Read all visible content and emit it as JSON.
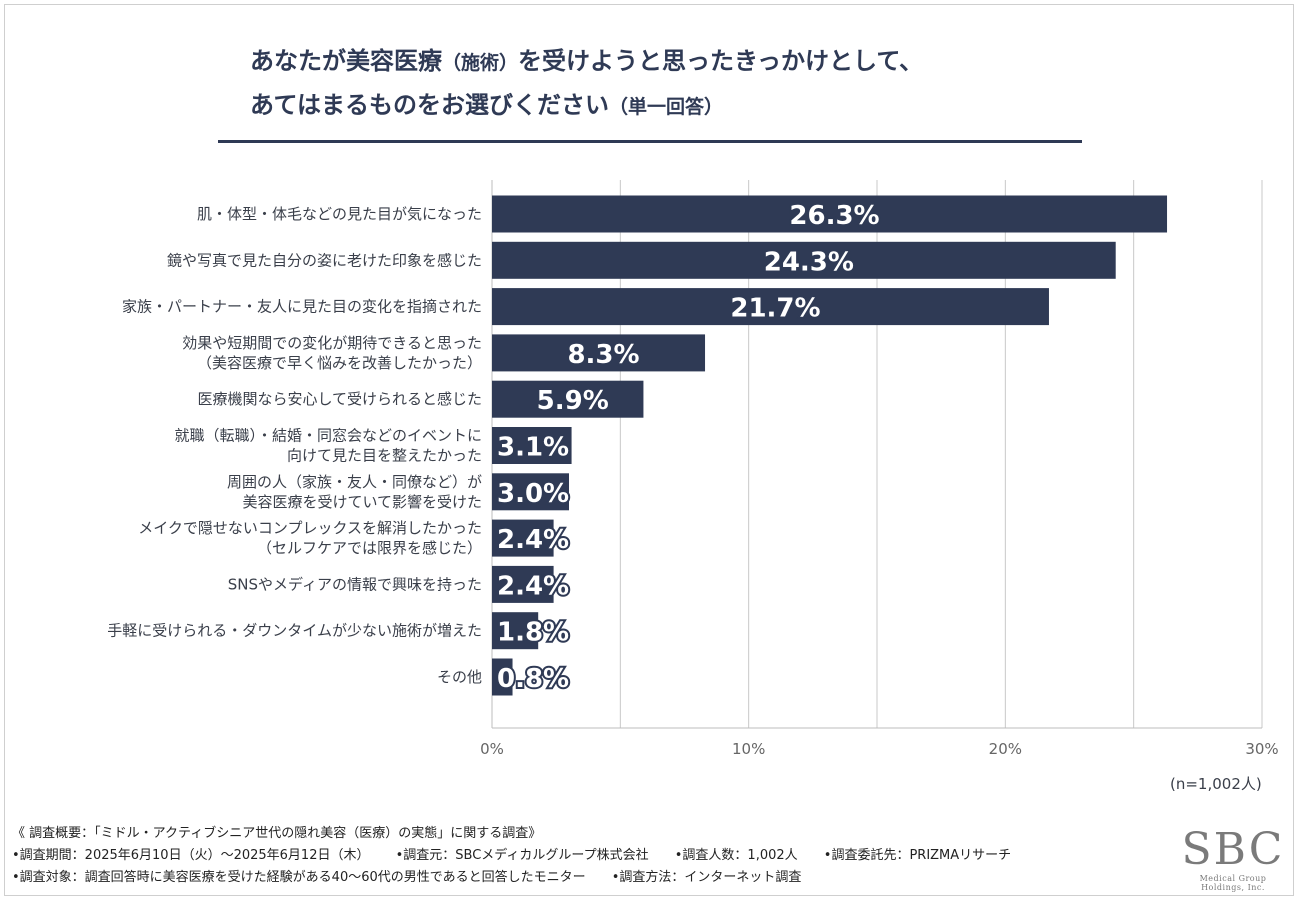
{
  "title": {
    "line1_main": "あなたが美容医療",
    "line1_paren": "（施術）",
    "line1_rest": "を受けようと思ったきっかけとして、",
    "line2_main": "あてはまるものをお選びください",
    "line2_paren": "（単一回答）"
  },
  "chart_data": {
    "type": "bar",
    "orientation": "horizontal",
    "categories": [
      [
        "肌・体型・体毛などの見た目が気になった"
      ],
      [
        "鏡や写真で見た自分の姿に老けた印象を感じた"
      ],
      [
        "家族・パートナー・友人に見た目の変化を指摘された"
      ],
      [
        "効果や短期間での変化が期待できると思った",
        "（美容医療で早く悩みを改善したかった）"
      ],
      [
        "医療機関なら安心して受けられると感じた"
      ],
      [
        "就職（転職）・結婚・同窓会などのイベントに",
        "向けて見た目を整えたかった"
      ],
      [
        "周囲の人（家族・友人・同僚など）が",
        "美容医療を受けていて影響を受けた"
      ],
      [
        "メイクで隠せないコンプレックスを解消したかった",
        "（セルフケアでは限界を感じた）"
      ],
      [
        "SNSやメディアの情報で興味を持った"
      ],
      [
        "手軽に受けられる・ダウンタイムが少ない施術が増えた"
      ],
      [
        "その他"
      ]
    ],
    "values": [
      26.3,
      24.3,
      21.7,
      8.3,
      5.9,
      3.1,
      3.0,
      2.4,
      2.4,
      1.8,
      0.8
    ],
    "value_labels": [
      "26.3%",
      "24.3%",
      "21.7%",
      "8.3%",
      "5.9%",
      "3.1%",
      "3.0%",
      "2.4%",
      "2.4%",
      "1.8%",
      "0.8%"
    ],
    "xlim": [
      0,
      30
    ],
    "x_ticks": [
      0,
      10,
      20,
      30
    ],
    "x_tick_labels": [
      "0%",
      "10%",
      "20%",
      "30%"
    ],
    "gridlines": [
      0,
      5,
      10,
      15,
      20,
      25,
      30
    ],
    "sample_note": "(n=1,002人)"
  },
  "footer": {
    "summary": "《 調査概要：「ミドル・アクティブシニア世代の隠れ美容（医療）の実態」に関する調査》",
    "period": "•調査期間：2025年6月10日（火）～2025年6月12日（木）",
    "source": "•調査元：SBCメディカルグループ株式会社",
    "count": "•調査人数：1,002人",
    "contractor": "•調査委託先：PRIZMAリサーチ",
    "target": "•調査対象：調査回答時に美容医療を受けた経験がある40～60代の男性であると回答したモニター",
    "method": "•調査方法：インターネット調査"
  },
  "logo": {
    "text": "SBC",
    "subtext": "Medical Group Holdings, Inc."
  },
  "colors": {
    "bar": "#2f3a55",
    "grid": "#c8c8c8",
    "title_rule": "#2f3a55"
  }
}
